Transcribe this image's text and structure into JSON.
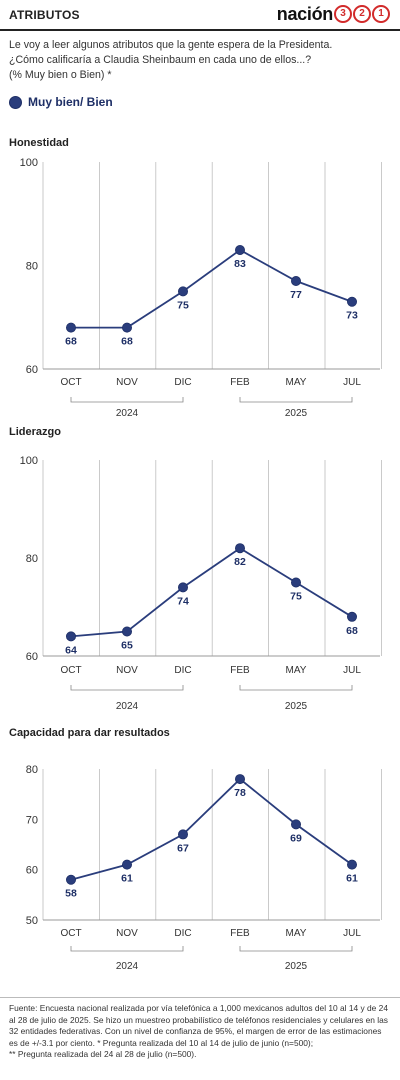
{
  "header": {
    "title": "ATRIBUTOS",
    "brand_text": "nación",
    "brand_digits": [
      "3",
      "2",
      "1"
    ]
  },
  "intro": {
    "lines": [
      "Le voy a leer algunos atributos que la gente espera de la Presidenta.",
      "¿Cómo calificaría a Claudia Sheinbaum en cada uno de ellos...?",
      "(% Muy bien o Bien) *"
    ]
  },
  "legend": {
    "label": "Muy bien/ Bien",
    "color": "#2a3d7c"
  },
  "chart_data": [
    {
      "type": "line",
      "title": "Honestidad",
      "categories": [
        "OCT",
        "NOV",
        "DIC",
        "FEB",
        "MAY",
        "JUL"
      ],
      "series": [
        {
          "name": "Muy bien/ Bien",
          "values": [
            68,
            68,
            75,
            83,
            77,
            73
          ]
        }
      ],
      "yticks": [
        60,
        80,
        100
      ],
      "ylim": [
        60,
        100
      ],
      "year_groups": [
        {
          "label": "2024",
          "from": 0,
          "to": 2
        },
        {
          "label": "2025",
          "from": 3,
          "to": 5
        }
      ]
    },
    {
      "type": "line",
      "title": "Liderazgo",
      "categories": [
        "OCT",
        "NOV",
        "DIC",
        "FEB",
        "MAY",
        "JUL"
      ],
      "series": [
        {
          "name": "Muy bien/ Bien",
          "values": [
            64,
            65,
            74,
            82,
            75,
            68
          ]
        }
      ],
      "yticks": [
        60,
        80,
        100
      ],
      "ylim": [
        60,
        100
      ],
      "year_groups": [
        {
          "label": "2024",
          "from": 0,
          "to": 2
        },
        {
          "label": "2025",
          "from": 3,
          "to": 5
        }
      ]
    },
    {
      "type": "line",
      "title": "Capacidad para dar resultados",
      "categories": [
        "OCT",
        "NOV",
        "DIC",
        "FEB",
        "MAY",
        "JUL"
      ],
      "series": [
        {
          "name": "Muy bien/ Bien",
          "values": [
            58,
            61,
            67,
            78,
            69,
            61
          ]
        }
      ],
      "yticks": [
        50,
        60,
        70,
        80
      ],
      "ylim": [
        50,
        80
      ],
      "year_groups": [
        {
          "label": "2024",
          "from": 0,
          "to": 2
        },
        {
          "label": "2025",
          "from": 3,
          "to": 5
        }
      ]
    }
  ],
  "footer": {
    "lines": [
      "Fuente:  Encuesta nacional realizada por vía telefónica a 1,000 mexicanos adultos del 10 al 14 y de 24",
      "al 28 de julio de 2025. Se hizo un muestreo probabilístico de teléfonos residenciales y celulares en las",
      "32 entidades federativas. Con un nivel de confianza de 95%, el margen de error de las estimaciones",
      "es de +/-3.1 por ciento. * Pregunta realizada del 10 al 14 de julio de junio (n=500);",
      "** Pregunta realizada del 24 al 28 de julio (n=500)."
    ]
  }
}
